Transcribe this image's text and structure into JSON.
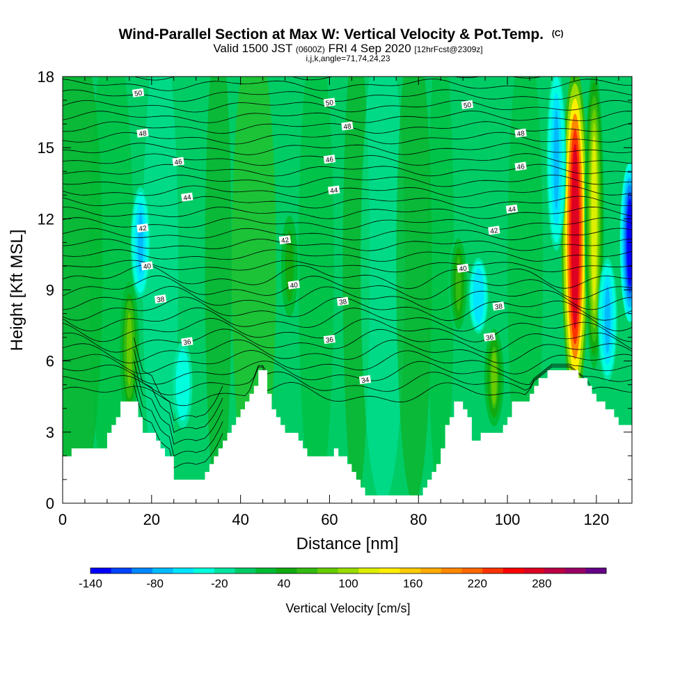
{
  "chart_data": {
    "type": "heatmap",
    "title": {
      "main": "Wind-Parallel Section at Max W: Vertical Velocity & Pot.Temp.",
      "copyright": "(C)",
      "valid_prefix": "Valid 1500 JST",
      "valid_zulu": "(0600Z)",
      "valid_date": "FRI 4 Sep 2020",
      "forecast": "[12hrFcst@2309z]",
      "params": "i,j,k,angle=71,74,24,23"
    },
    "xlabel": "Distance [nm]",
    "ylabel": "Height [Kft MSL]",
    "xlim": [
      0,
      128
    ],
    "ylim": [
      0,
      18
    ],
    "x_ticks": [
      "0",
      "20",
      "40",
      "60",
      "80",
      "100",
      "120"
    ],
    "y_ticks": [
      "0",
      "3",
      "6",
      "9",
      "12",
      "15",
      "18"
    ],
    "colorbar": {
      "label": "Vertical Velocity [cm/s]",
      "range": [
        -140,
        340
      ],
      "step": 20,
      "tick_labels": [
        "-140",
        "-80",
        "-20",
        "40",
        "100",
        "160",
        "220",
        "280"
      ],
      "colors": [
        "#0000ff",
        "#0044ff",
        "#0088ff",
        "#00bbff",
        "#00e5ff",
        "#00ffdd",
        "#00e5a0",
        "#00cc66",
        "#00bb33",
        "#11aa11",
        "#33bb11",
        "#66cc00",
        "#99dd00",
        "#ddee00",
        "#ffee00",
        "#ffcc00",
        "#ffaa00",
        "#ff8800",
        "#ff6600",
        "#ff3300",
        "#ff0000",
        "#dd0022",
        "#bb0044",
        "#990066",
        "#660088"
      ]
    },
    "terrain_nm_kft": [
      [
        0,
        1.9
      ],
      [
        2,
        2.3
      ],
      [
        9,
        2.3
      ],
      [
        10,
        3.0
      ],
      [
        12,
        3.6
      ],
      [
        13,
        4.3
      ],
      [
        16,
        4.3
      ],
      [
        17,
        3.6
      ],
      [
        18,
        3.0
      ],
      [
        20,
        3.0
      ],
      [
        22,
        2.3
      ],
      [
        24,
        1.9
      ],
      [
        25,
        1.0
      ],
      [
        30,
        1.0
      ],
      [
        32,
        1.3
      ],
      [
        34,
        1.9
      ],
      [
        36,
        2.6
      ],
      [
        38,
        3.3
      ],
      [
        40,
        4.0
      ],
      [
        42,
        4.6
      ],
      [
        44,
        5.6
      ],
      [
        45,
        5.6
      ],
      [
        46,
        4.6
      ],
      [
        48,
        3.6
      ],
      [
        50,
        3.0
      ],
      [
        52,
        3.0
      ],
      [
        54,
        2.3
      ],
      [
        56,
        1.9
      ],
      [
        59,
        1.9
      ],
      [
        61,
        2.3
      ],
      [
        63,
        1.9
      ],
      [
        65,
        1.3
      ],
      [
        67,
        0.6
      ],
      [
        69,
        0.3
      ],
      [
        74,
        0.3
      ],
      [
        79,
        0.3
      ],
      [
        81,
        0.6
      ],
      [
        83,
        1.3
      ],
      [
        85,
        2.3
      ],
      [
        86,
        3.3
      ],
      [
        87,
        3.6
      ],
      [
        88,
        4.3
      ],
      [
        90,
        4.0
      ],
      [
        91,
        3.6
      ],
      [
        92,
        2.6
      ],
      [
        94,
        3.0
      ],
      [
        98,
        3.0
      ],
      [
        100,
        3.6
      ],
      [
        101,
        4.3
      ],
      [
        104,
        4.3
      ],
      [
        106,
        5.0
      ],
      [
        108,
        5.3
      ],
      [
        110,
        5.6
      ],
      [
        114,
        5.6
      ],
      [
        116,
        5.3
      ],
      [
        118,
        5.0
      ],
      [
        120,
        4.3
      ],
      [
        122,
        4.0
      ],
      [
        124,
        3.6
      ],
      [
        126,
        3.3
      ],
      [
        128,
        3.3
      ]
    ],
    "updrafts": [
      {
        "x": 115.2,
        "y_base": 4.5,
        "y_top": 18,
        "w_max": 290
      },
      {
        "x": 119.5,
        "y_base": 6.0,
        "y_top": 18,
        "w_max": 120
      },
      {
        "x": 15.0,
        "y_base": 4.0,
        "y_top": 9.0,
        "w_max": 90
      },
      {
        "x": 97.0,
        "y_base": 3.6,
        "y_top": 7.0,
        "w_max": 80
      },
      {
        "x": 89.0,
        "y_base": 7.5,
        "y_top": 11.0,
        "w_max": 70
      },
      {
        "x": 51.0,
        "y_base": 8.0,
        "y_top": 12.0,
        "w_max": 50
      }
    ],
    "downdrafts": [
      {
        "x": 127.5,
        "y_base": 8.0,
        "y_top": 14.0,
        "w_min": -140
      },
      {
        "x": 17.5,
        "y_base": 9.0,
        "y_top": 13.0,
        "w_min": -70
      },
      {
        "x": 111.0,
        "y_base": 11.0,
        "y_top": 18.0,
        "w_min": -70
      },
      {
        "x": 122.5,
        "y_base": 5.5,
        "y_top": 10.0,
        "w_min": -70
      },
      {
        "x": 93.5,
        "y_base": 7.5,
        "y_top": 10.0,
        "w_min": -60
      },
      {
        "x": 27.0,
        "y_base": 3.5,
        "y_top": 6.5,
        "w_min": -40
      }
    ],
    "theta_contours": {
      "units": "degC",
      "labels": [
        {
          "text": "50",
          "x": 17,
          "y": 17.3
        },
        {
          "text": "50",
          "x": 60,
          "y": 16.9
        },
        {
          "text": "50",
          "x": 91,
          "y": 16.8
        },
        {
          "text": "48",
          "x": 18,
          "y": 15.6
        },
        {
          "text": "48",
          "x": 64,
          "y": 15.9
        },
        {
          "text": "48",
          "x": 103,
          "y": 15.6
        },
        {
          "text": "46",
          "x": 26,
          "y": 14.4
        },
        {
          "text": "46",
          "x": 60,
          "y": 14.5
        },
        {
          "text": "46",
          "x": 103,
          "y": 14.2
        },
        {
          "text": "44",
          "x": 28,
          "y": 12.9
        },
        {
          "text": "44",
          "x": 61,
          "y": 13.2
        },
        {
          "text": "44",
          "x": 101,
          "y": 12.4
        },
        {
          "text": "42",
          "x": 18,
          "y": 11.6
        },
        {
          "text": "42",
          "x": 50,
          "y": 11.1
        },
        {
          "text": "42",
          "x": 97,
          "y": 11.5
        },
        {
          "text": "40",
          "x": 19,
          "y": 10.0
        },
        {
          "text": "40",
          "x": 52,
          "y": 9.2
        },
        {
          "text": "40",
          "x": 90,
          "y": 9.9
        },
        {
          "text": "38",
          "x": 22,
          "y": 8.6
        },
        {
          "text": "38",
          "x": 63,
          "y": 8.5
        },
        {
          "text": "38",
          "x": 98,
          "y": 8.3
        },
        {
          "text": "36",
          "x": 28,
          "y": 6.8
        },
        {
          "text": "36",
          "x": 60,
          "y": 6.9
        },
        {
          "text": "36",
          "x": 96,
          "y": 7.0
        },
        {
          "text": "34",
          "x": 68,
          "y": 5.2
        }
      ]
    }
  }
}
